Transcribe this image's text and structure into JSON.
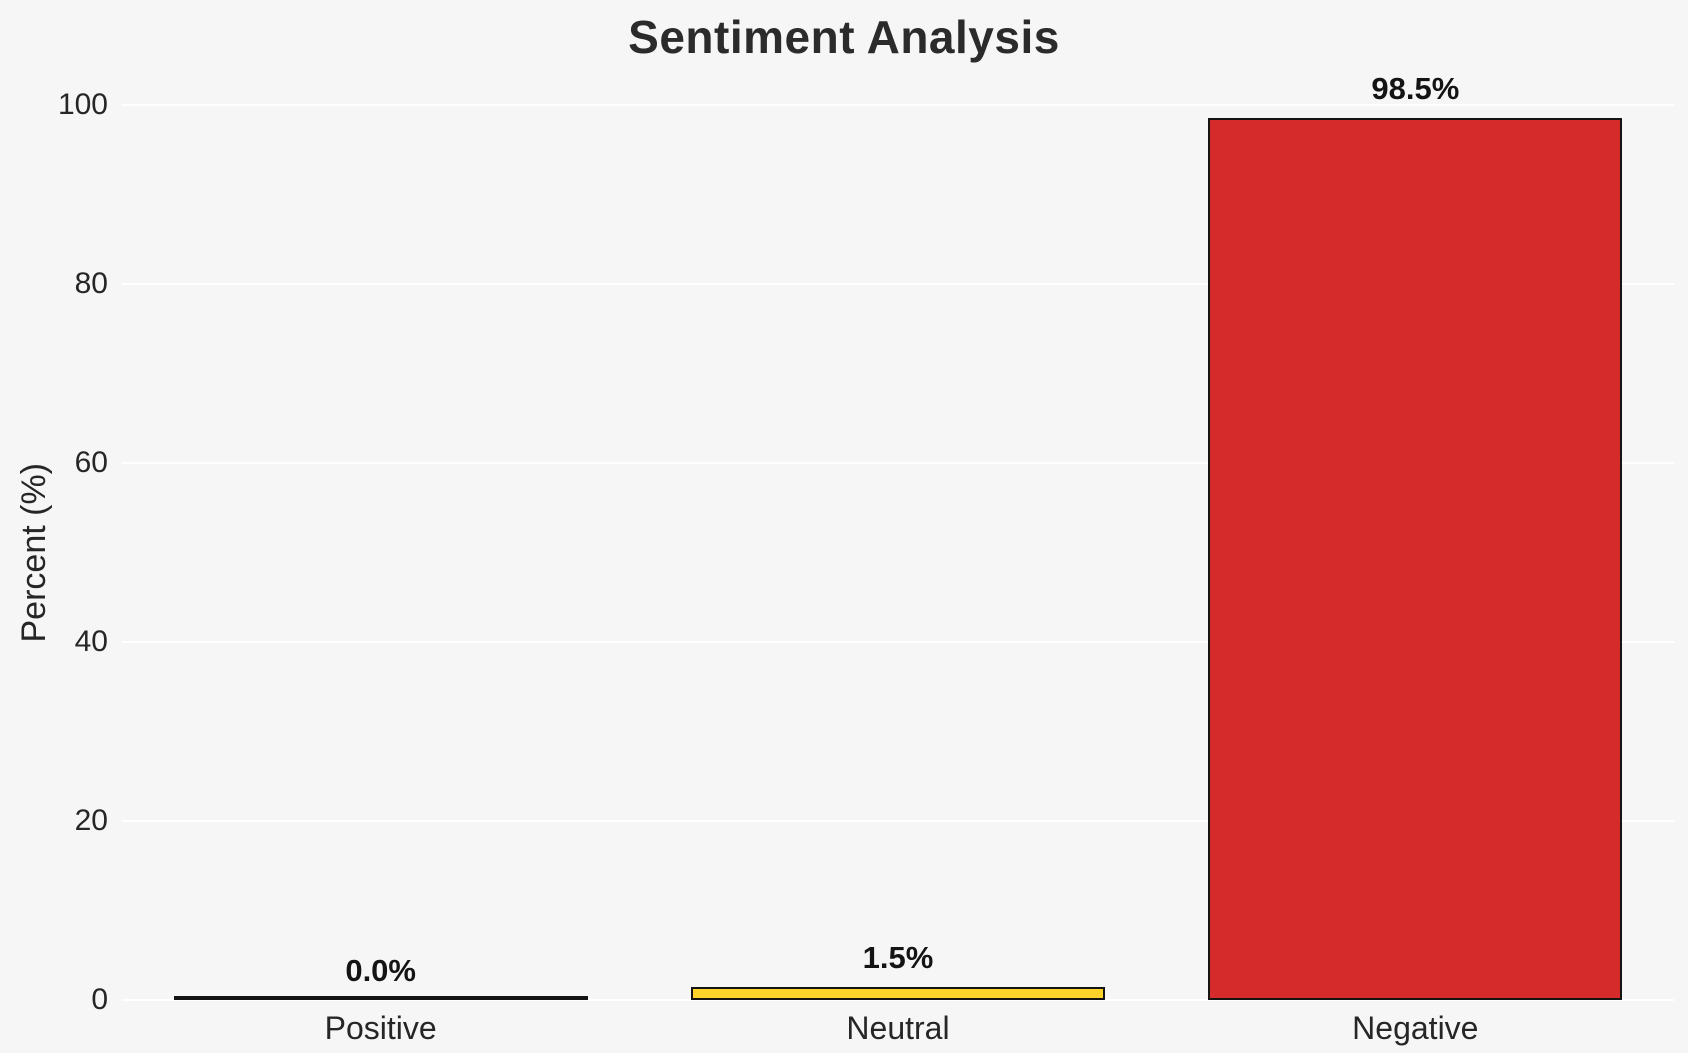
{
  "chart_data": {
    "type": "bar",
    "title": "Sentiment Analysis",
    "categories": [
      "Positive",
      "Neutral",
      "Negative"
    ],
    "values": [
      0.0,
      1.5,
      98.5
    ],
    "value_labels": [
      "0.0%",
      "1.5%",
      "98.5%"
    ],
    "bar_colors": [
      "transparent",
      "#ffd42a",
      "#d62b2b"
    ],
    "bar_edge_color": "#141414",
    "xlabel": "",
    "ylabel": "Percent (%)",
    "ylim": [
      0,
      100
    ],
    "yticks": [
      0,
      20,
      40,
      60,
      80,
      100
    ],
    "grid": true,
    "legend": "none",
    "background_color": "#f6f6f6",
    "grid_color": "#ffffff",
    "text_color": "#262626"
  }
}
